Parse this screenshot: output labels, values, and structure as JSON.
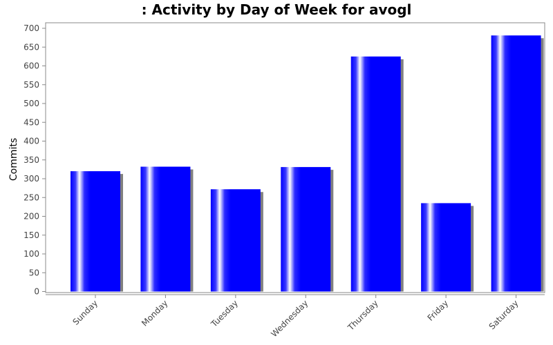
{
  "chart_data": {
    "type": "bar",
    "title": ": Activity by Day of Week for avogl",
    "xlabel": "",
    "ylabel": "Commits",
    "categories": [
      "Sunday",
      "Monday",
      "Tuesday",
      "Wednesday",
      "Thursday",
      "Friday",
      "Saturday"
    ],
    "values": [
      320,
      332,
      272,
      331,
      625,
      235,
      681
    ],
    "ylim": [
      0,
      715
    ],
    "yticks": [
      0,
      50,
      100,
      150,
      200,
      250,
      300,
      350,
      400,
      450,
      500,
      550,
      600,
      650,
      700
    ],
    "grid": false,
    "legend": "none",
    "bar_color": "#0000ff",
    "shadow_color": "#808080"
  }
}
